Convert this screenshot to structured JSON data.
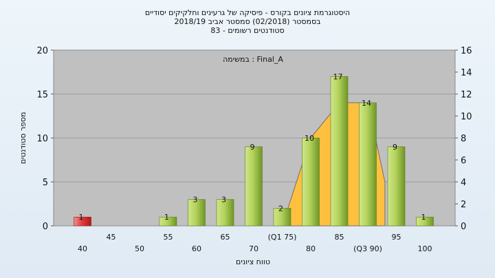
{
  "chart_data": {
    "type": "bar",
    "title_lines": [
      "היסטוגרמת ציונים בקורס - פיסיקה של גרעינים וחלקיקים יסודיים",
      "בסמסטר  (02/2018)  סמסטר אביב 2018/19",
      "סטודנטים רשומים - 83"
    ],
    "task_label": "במשימה : Final_A",
    "xlabel": "טווח ציונים",
    "ylabel": "מספר סטודנטים",
    "ylim_left": [
      0,
      20
    ],
    "yticks_left": [
      0,
      5,
      10,
      15,
      20
    ],
    "ylim_right": [
      0,
      16
    ],
    "yticks_right": [
      0,
      2,
      4,
      6,
      8,
      10,
      12,
      14,
      16
    ],
    "grid": "horizontal",
    "categories": [
      "40",
      "45",
      "50",
      "55",
      "60",
      "65",
      "70",
      "75",
      "80",
      "85",
      "90",
      "95",
      "100"
    ],
    "tick_labels": [
      "40",
      "45",
      "50",
      "55",
      "60",
      "65",
      "70",
      "(Q1 75)",
      "80",
      "85",
      "(Q3 90)",
      "95",
      "100"
    ],
    "values": [
      1,
      0,
      0,
      1,
      3,
      3,
      9,
      2,
      10,
      17,
      14,
      9,
      1
    ],
    "value_labels": [
      "1",
      "",
      "",
      "1",
      "3",
      "3",
      "9",
      "2",
      "10",
      "17",
      "14",
      "9",
      "1"
    ],
    "highlight_category": "40",
    "band_series": {
      "values": [
        null,
        null,
        null,
        null,
        null,
        null,
        null,
        0,
        10,
        14,
        14,
        null,
        null
      ],
      "drop_to": 5
    },
    "colors": {
      "plot_bg": "#c0c0c0",
      "bar_green_light": "#d6eaa0",
      "bar_green_dark": "#7aa02a",
      "bar_red_light": "#f08a8a",
      "bar_red_dark": "#c81e1e",
      "band": "#ffc040"
    }
  }
}
